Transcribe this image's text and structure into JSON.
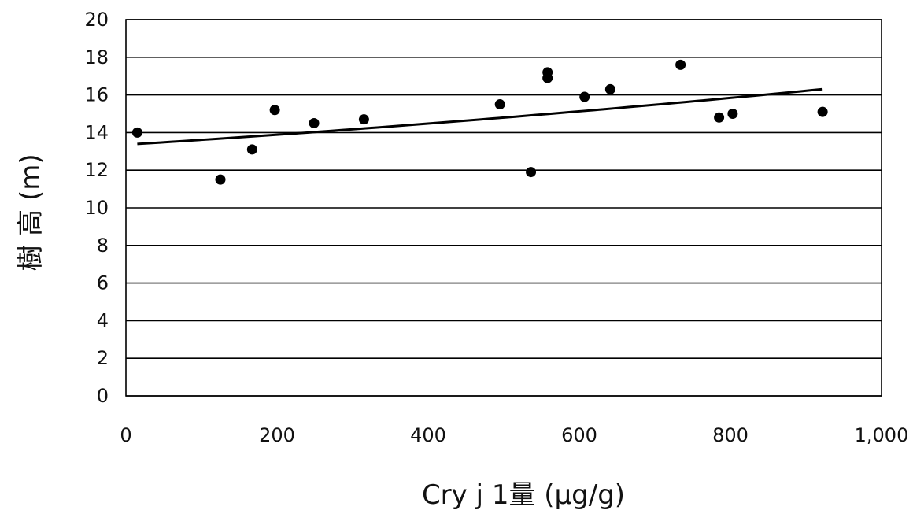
{
  "chart_data": {
    "type": "scatter",
    "title": "",
    "xlabel": "Cry j 1量 (μg/g)",
    "ylabel": "樹 高 (m)",
    "xlim": [
      0,
      1000
    ],
    "ylim": [
      0,
      20
    ],
    "x_ticks": [
      0,
      200,
      400,
      600,
      800,
      1000
    ],
    "x_tick_labels": [
      "0",
      "200",
      "400",
      "600",
      "800",
      "1,000"
    ],
    "y_ticks": [
      0,
      2,
      4,
      6,
      8,
      10,
      12,
      14,
      16,
      18,
      20
    ],
    "y_tick_labels": [
      "0",
      "2",
      "4",
      "6",
      "8",
      "10",
      "12",
      "14",
      "16",
      "18",
      "20"
    ],
    "grid": "horizontal",
    "legend": "none",
    "series": [
      {
        "points": [
          {
            "x": 15,
            "y": 14.0
          },
          {
            "x": 125,
            "y": 11.5
          },
          {
            "x": 167,
            "y": 13.1
          },
          {
            "x": 197,
            "y": 15.2
          },
          {
            "x": 249,
            "y": 14.5
          },
          {
            "x": 315,
            "y": 14.7
          },
          {
            "x": 495,
            "y": 15.5
          },
          {
            "x": 536,
            "y": 11.9
          },
          {
            "x": 558,
            "y": 17.2
          },
          {
            "x": 558,
            "y": 16.9
          },
          {
            "x": 607,
            "y": 15.9
          },
          {
            "x": 641,
            "y": 16.3
          },
          {
            "x": 734,
            "y": 17.6
          },
          {
            "x": 785,
            "y": 14.8
          },
          {
            "x": 803,
            "y": 15.0
          },
          {
            "x": 922,
            "y": 15.1
          }
        ]
      }
    ],
    "trendline": {
      "type": "quadratic",
      "points": [
        {
          "x": 15,
          "y": 13.4
        },
        {
          "x": 300,
          "y": 14.15
        },
        {
          "x": 600,
          "y": 15.15
        },
        {
          "x": 922,
          "y": 16.3
        }
      ]
    },
    "colors": {
      "points": "#000000",
      "trendline": "#000000",
      "grid": "#000000",
      "text": "#111111"
    }
  }
}
